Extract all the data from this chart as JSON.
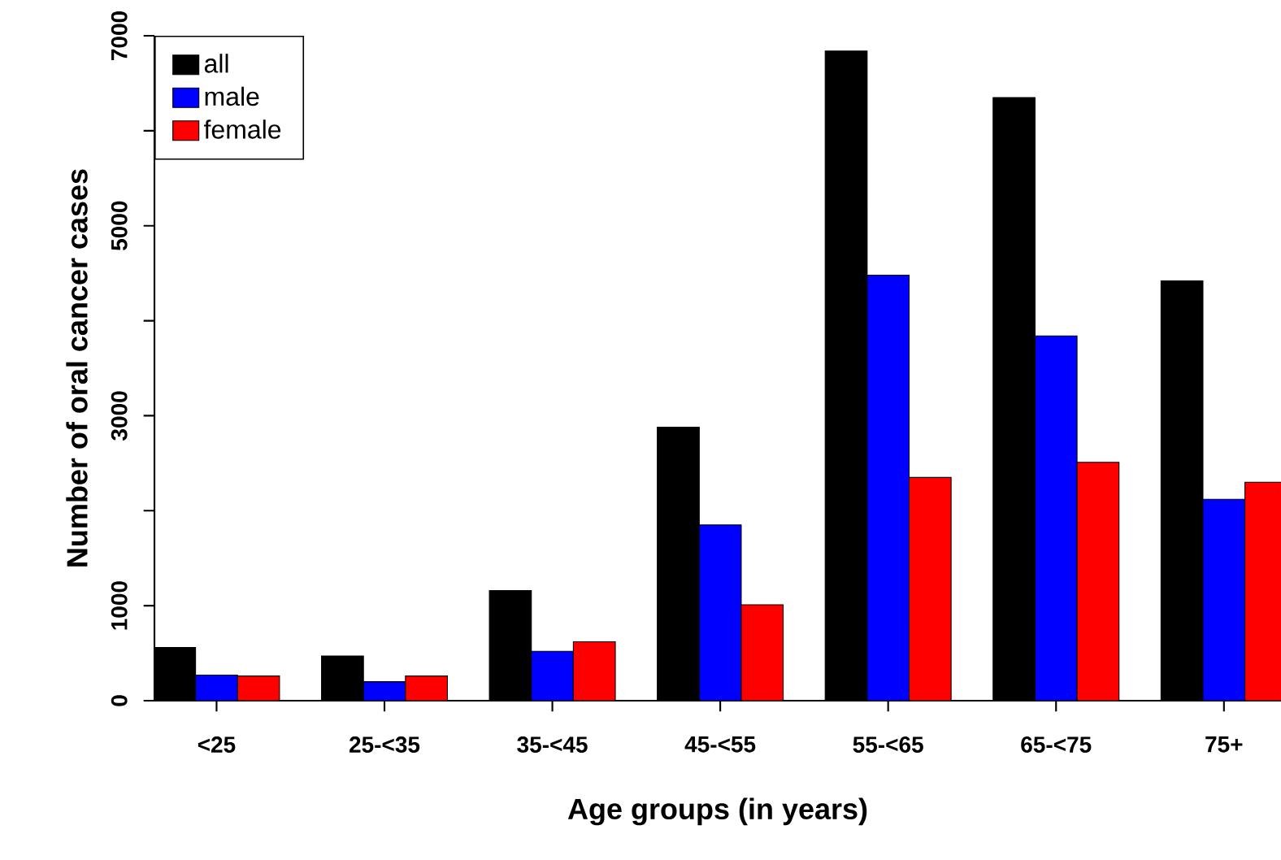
{
  "chart_data": {
    "type": "bar",
    "xlabel": "Age groups (in years)",
    "ylabel": "Number of oral cancer cases",
    "categories": [
      "<25",
      "25-<35",
      "35-<45",
      "45-<55",
      "55-<65",
      "65-<75",
      "75+"
    ],
    "series": [
      {
        "name": "all",
        "color": "#000000",
        "values": [
          560,
          470,
          1160,
          2880,
          6840,
          6350,
          4420
        ]
      },
      {
        "name": "male",
        "color": "#0000ff",
        "values": [
          270,
          200,
          520,
          1850,
          4480,
          3840,
          2120
        ]
      },
      {
        "name": "female",
        "color": "#ff0000",
        "values": [
          260,
          260,
          620,
          1010,
          2350,
          2510,
          2300
        ]
      }
    ],
    "ylim": [
      0,
      7000
    ],
    "yticks": [
      0,
      1000,
      {
        "value": 2000,
        "label": null
      },
      3000,
      {
        "value": 4000,
        "label": null
      },
      5000,
      {
        "value": 6000,
        "label": null
      },
      7000
    ],
    "legend": "top left",
    "grid": false
  }
}
